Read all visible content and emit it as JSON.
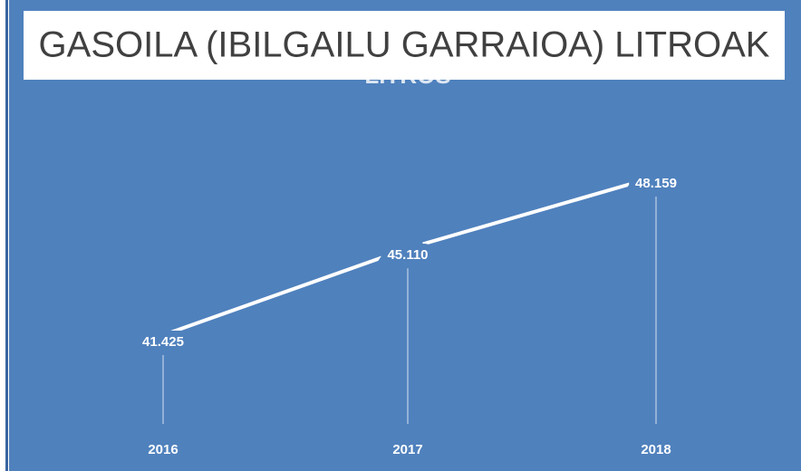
{
  "chart_data": {
    "type": "line",
    "title": "GASOILA (IBILGAILU GARRAIOA) LITROAK",
    "subtitle": "LITROS",
    "categories": [
      "2016",
      "2017",
      "2018"
    ],
    "values": [
      41425,
      45110,
      48159
    ],
    "value_labels": [
      "41.425",
      "45.110",
      "48.159"
    ],
    "color": "#ffffff",
    "background": "#4f81bd"
  }
}
